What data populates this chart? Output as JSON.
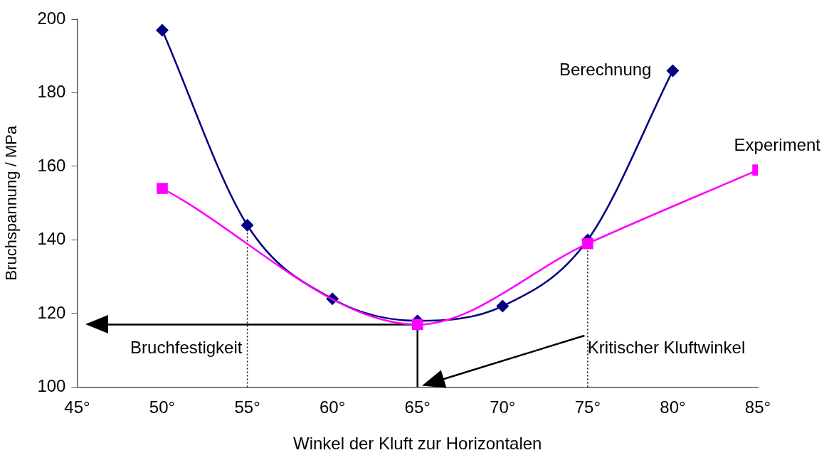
{
  "chart_data": {
    "type": "line",
    "xlabel": "Winkel der Kluft zur Horizontalen",
    "ylabel": "Bruchspannung / MPa",
    "series": [
      {
        "name": "Berechnung",
        "color": "#000080",
        "marker": "diamond",
        "x": [
          50,
          55,
          60,
          65,
          70,
          75,
          80
        ],
        "values": [
          197,
          144,
          124,
          118,
          122,
          140,
          186
        ]
      },
      {
        "name": "Experiment",
        "color": "#ff00ff",
        "marker": "square",
        "x": [
          50,
          65,
          75,
          85
        ],
        "values": [
          154,
          117,
          139,
          159
        ]
      }
    ],
    "xlim": [
      45,
      85
    ],
    "xticks": [
      {
        "value": 45,
        "label": "45°"
      },
      {
        "value": 50,
        "label": "50°"
      },
      {
        "value": 55,
        "label": "55°"
      },
      {
        "value": 60,
        "label": "60°"
      },
      {
        "value": 65,
        "label": "65°"
      },
      {
        "value": 70,
        "label": "70°"
      },
      {
        "value": 75,
        "label": "75°"
      },
      {
        "value": 80,
        "label": "80°"
      },
      {
        "value": 85,
        "label": "85°"
      }
    ],
    "ylim": [
      100,
      200
    ],
    "yticks": [
      100,
      120,
      140,
      160,
      180,
      200
    ],
    "ref_lines": [
      {
        "axis": "x",
        "value": 55,
        "color": "#000000",
        "line_style": "dotted"
      },
      {
        "axis": "x",
        "value": 75,
        "color": "#000000",
        "line_style": "dotted"
      },
      {
        "axis": "y",
        "value": 117,
        "label": "Bruchfestigkeit",
        "color": "#000000",
        "line_style": "solid"
      },
      {
        "axis": "x",
        "value": 65,
        "color": "#000000",
        "line_style": "solid"
      }
    ],
    "annotations": [
      "Kritischer Kluftwinkel"
    ],
    "grid": false,
    "legend": false,
    "line_style": "solid"
  }
}
